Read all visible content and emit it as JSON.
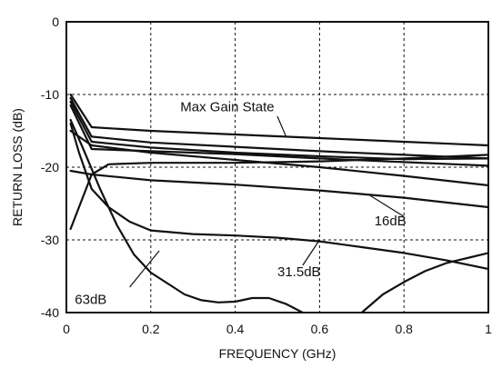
{
  "chart_data": {
    "type": "line",
    "title": "",
    "xlabel": "FREQUENCY (GHz)",
    "ylabel": "RETURN LOSS (dB)",
    "xlim": [
      0,
      1
    ],
    "ylim": [
      -40,
      0
    ],
    "x_ticks": [
      0,
      0.2,
      0.4,
      0.6,
      0.8,
      1
    ],
    "x_tick_labels": [
      "0",
      "0.2",
      "0.4",
      "0.6",
      "0.8",
      "1"
    ],
    "y_ticks": [
      0,
      -10,
      -20,
      -30,
      -40
    ],
    "y_tick_labels": [
      "0",
      "-10",
      "-20",
      "-30",
      "-40"
    ],
    "grid": true,
    "series": [
      {
        "x": [
          0.01,
          0.06,
          0.2,
          0.4,
          0.6,
          0.8,
          1.0
        ],
        "y": [
          -10.0,
          -14.5,
          -15.0,
          -15.5,
          -16.0,
          -16.5,
          -17.0
        ]
      },
      {
        "x": [
          0.01,
          0.06,
          0.2,
          0.4,
          0.6,
          0.8,
          1.0
        ],
        "y": [
          -10.5,
          -15.8,
          -16.6,
          -17.2,
          -17.8,
          -18.3,
          -18.8
        ]
      },
      {
        "x": [
          0.01,
          0.06,
          0.2,
          0.4,
          0.6,
          0.8,
          1.0
        ],
        "y": [
          -11.0,
          -16.5,
          -17.3,
          -18.0,
          -18.5,
          -18.9,
          -18.8
        ]
      },
      {
        "x": [
          0.01,
          0.06,
          0.2,
          0.4,
          0.6,
          0.8,
          1.0
        ],
        "y": [
          -11.5,
          -17.5,
          -17.8,
          -18.2,
          -18.8,
          -19.3,
          -19.8
        ]
      },
      {
        "x": [
          0.01,
          0.06,
          0.2,
          0.4,
          0.6,
          0.8,
          1.0
        ],
        "y": [
          -15.0,
          -17.0,
          -18.0,
          -19.0,
          -20.0,
          -21.2,
          -22.5
        ]
      },
      {
        "x": [
          0.01,
          0.06,
          0.2,
          0.4,
          0.6,
          0.8,
          1.0
        ],
        "y": [
          -20.5,
          -21.0,
          -21.8,
          -22.4,
          -23.2,
          -24.2,
          -25.5
        ]
      },
      {
        "x": [
          0.01,
          0.06,
          0.1,
          0.2,
          0.4,
          0.6,
          0.8,
          1.0
        ],
        "y": [
          -28.5,
          -21.0,
          -19.6,
          -19.4,
          -19.4,
          -19.2,
          -18.8,
          -18.3
        ]
      },
      {
        "x": [
          0.01,
          0.03,
          0.06,
          0.1,
          0.15,
          0.2,
          0.3,
          0.4,
          0.5,
          0.6,
          0.7,
          0.8,
          0.9,
          1.0
        ],
        "y": [
          -14.0,
          -18.0,
          -23.0,
          -25.5,
          -27.5,
          -28.7,
          -29.2,
          -29.4,
          -29.7,
          -30.2,
          -31.0,
          -31.8,
          -32.8,
          -34.0
        ]
      },
      {
        "x": [
          0.01,
          0.04,
          0.08,
          0.12,
          0.16,
          0.2,
          0.24,
          0.28,
          0.32,
          0.36,
          0.4,
          0.44,
          0.48,
          0.52,
          0.56,
          0.6,
          0.64,
          0.68
        ],
        "y": [
          -13.5,
          -17.5,
          -23.0,
          -28.0,
          -32.0,
          -34.5,
          -36.0,
          -37.5,
          -38.3,
          -38.6,
          -38.5,
          -38.0,
          -38.0,
          -38.8,
          -40.0,
          -41.5,
          -42.0,
          -41.0
        ]
      },
      {
        "x": [
          0.62,
          0.66,
          0.7,
          0.75,
          0.8,
          0.85,
          0.9,
          0.95,
          1.0
        ],
        "y": [
          -43.0,
          -41.5,
          -40.0,
          -37.5,
          -35.8,
          -34.3,
          -33.2,
          -32.5,
          -31.8
        ]
      }
    ],
    "annotations": [
      {
        "text": "Max Gain State",
        "x": 0.27,
        "y": -12.3,
        "arrow_to": [
          0.52,
          -15.7
        ],
        "arrow_from": [
          0.5,
          -13.0
        ]
      },
      {
        "text": "16dB",
        "x": 0.73,
        "y": -28.0,
        "arrow_to": [
          0.72,
          -23.9
        ],
        "arrow_from": [
          0.8,
          -26.8
        ]
      },
      {
        "text": "31.5dB",
        "x": 0.5,
        "y": -35.0,
        "arrow_to": [
          0.6,
          -30.0
        ],
        "arrow_from": [
          0.56,
          -33.5
        ]
      },
      {
        "text": "63dB",
        "x": 0.02,
        "y": -38.8,
        "arrow_to": [
          0.22,
          -31.5
        ],
        "arrow_from": [
          0.15,
          -36.5
        ]
      }
    ]
  }
}
